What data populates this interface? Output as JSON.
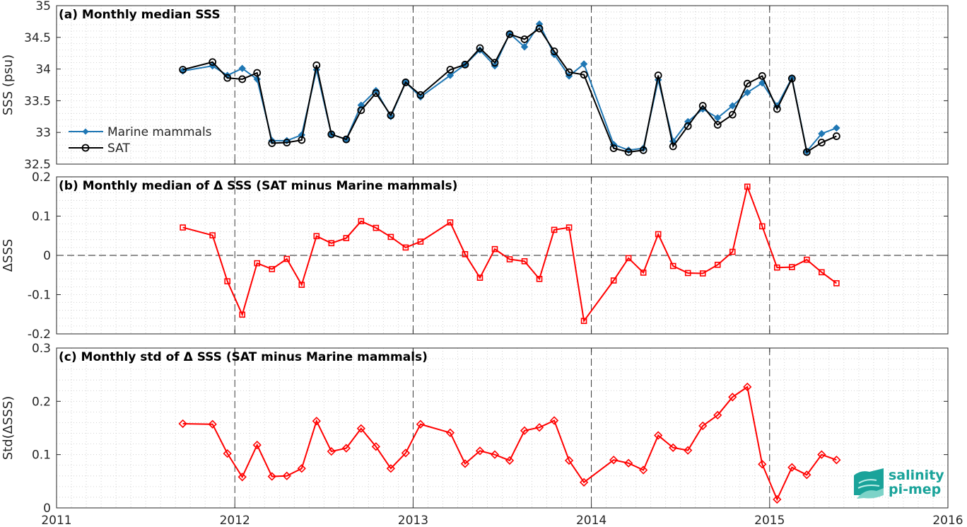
{
  "chart_data": [
    {
      "type": "line",
      "title": "(a) Monthly median SSS",
      "ylabel": "SSS (psu)",
      "xlim": [
        2011,
        2016
      ],
      "ylim": [
        32.5,
        35
      ],
      "yticks": [
        "32.5",
        "33",
        "33.5",
        "34",
        "34.5",
        "35"
      ],
      "xticks": [
        "2011",
        "2012",
        "2013",
        "2014",
        "2015",
        "2016"
      ],
      "grid": true,
      "legend_position": "bottom-left",
      "series": [
        {
          "name": "Marine mammals",
          "color": "#1f77b4",
          "marker": "diamond-filled",
          "points": [
            [
              "2011-09",
              33.97
            ],
            [
              "2011-11",
              34.05
            ],
            [
              "2011-12",
              33.9
            ],
            [
              "2012-01",
              34.01
            ],
            [
              "2012-02",
              33.84
            ],
            [
              "2012-03",
              32.87
            ],
            [
              "2012-04",
              32.87
            ],
            [
              "2012-05",
              32.96
            ],
            [
              "2012-06",
              33.99
            ],
            [
              "2012-07",
              32.97
            ],
            [
              "2012-08",
              32.89
            ],
            [
              "2012-09",
              33.43
            ],
            [
              "2012-10",
              33.66
            ],
            [
              "2012-11",
              33.25
            ],
            [
              "2012-12",
              33.79
            ],
            [
              "2013-01",
              33.56
            ],
            [
              "2013-03",
              33.9
            ],
            [
              "2013-04",
              34.07
            ],
            [
              "2013-05",
              34.3
            ],
            [
              "2013-06",
              34.05
            ],
            [
              "2013-07",
              34.56
            ],
            [
              "2013-08",
              34.35
            ],
            [
              "2013-09",
              34.71
            ],
            [
              "2013-10",
              34.23
            ],
            [
              "2013-11",
              33.89
            ],
            [
              "2013-12",
              34.08
            ],
            [
              "2014-02",
              32.81
            ],
            [
              "2014-03",
              32.72
            ],
            [
              "2014-04",
              32.75
            ],
            [
              "2014-05",
              33.83
            ],
            [
              "2014-06",
              32.86
            ],
            [
              "2014-07",
              33.17
            ],
            [
              "2014-08",
              33.37
            ],
            [
              "2014-09",
              33.23
            ],
            [
              "2014-10",
              33.42
            ],
            [
              "2014-11",
              33.63
            ],
            [
              "2014-12",
              33.78
            ],
            [
              "2015-01",
              33.42
            ],
            [
              "2015-02",
              33.86
            ],
            [
              "2015-03",
              32.7
            ],
            [
              "2015-04",
              32.98
            ],
            [
              "2015-05",
              33.07
            ]
          ]
        },
        {
          "name": "SAT",
          "color": "#000000",
          "marker": "circle-open",
          "points": [
            [
              "2011-09",
              33.99
            ],
            [
              "2011-11",
              34.11
            ],
            [
              "2011-12",
              33.86
            ],
            [
              "2012-01",
              33.84
            ],
            [
              "2012-02",
              33.94
            ],
            [
              "2012-03",
              32.83
            ],
            [
              "2012-04",
              32.84
            ],
            [
              "2012-05",
              32.88
            ],
            [
              "2012-06",
              34.06
            ],
            [
              "2012-07",
              32.97
            ],
            [
              "2012-08",
              32.89
            ],
            [
              "2012-09",
              33.35
            ],
            [
              "2012-10",
              33.62
            ],
            [
              "2012-11",
              33.27
            ],
            [
              "2012-12",
              33.79
            ],
            [
              "2013-01",
              33.59
            ],
            [
              "2013-03",
              33.99
            ],
            [
              "2013-04",
              34.07
            ],
            [
              "2013-05",
              34.33
            ],
            [
              "2013-06",
              34.1
            ],
            [
              "2013-07",
              34.55
            ],
            [
              "2013-08",
              34.47
            ],
            [
              "2013-09",
              34.64
            ],
            [
              "2013-10",
              34.28
            ],
            [
              "2013-11",
              33.95
            ],
            [
              "2013-12",
              33.91
            ],
            [
              "2014-02",
              32.75
            ],
            [
              "2014-03",
              32.69
            ],
            [
              "2014-04",
              32.72
            ],
            [
              "2014-05",
              33.9
            ],
            [
              "2014-06",
              32.78
            ],
            [
              "2014-07",
              33.1
            ],
            [
              "2014-08",
              33.42
            ],
            [
              "2014-09",
              33.12
            ],
            [
              "2014-10",
              33.28
            ],
            [
              "2014-11",
              33.77
            ],
            [
              "2014-12",
              33.89
            ],
            [
              "2015-01",
              33.37
            ],
            [
              "2015-02",
              33.85
            ],
            [
              "2015-03",
              32.69
            ],
            [
              "2015-04",
              32.84
            ],
            [
              "2015-05",
              32.94
            ]
          ]
        }
      ]
    },
    {
      "type": "line",
      "title": "(b) Monthly median of Δ SSS (SAT minus Marine mammals)",
      "ylabel": "ΔSSS",
      "xlim": [
        2011,
        2016
      ],
      "ylim": [
        -0.2,
        0.2
      ],
      "yticks": [
        "-0.2",
        "-0.1",
        "0",
        "0.1",
        "0.2"
      ],
      "xticks": [
        "2011",
        "2012",
        "2013",
        "2014",
        "2015",
        "2016"
      ],
      "grid": true,
      "zero_line": true,
      "series": [
        {
          "color": "#ff0000",
          "marker": "square-open",
          "points": [
            [
              "2011-09",
              0.071
            ],
            [
              "2011-11",
              0.051
            ],
            [
              "2011-12",
              -0.066
            ],
            [
              "2012-01",
              -0.151
            ],
            [
              "2012-02",
              -0.02
            ],
            [
              "2012-03",
              -0.035
            ],
            [
              "2012-04",
              -0.009
            ],
            [
              "2012-05",
              -0.075
            ],
            [
              "2012-06",
              0.049
            ],
            [
              "2012-07",
              0.031
            ],
            [
              "2012-08",
              0.044
            ],
            [
              "2012-09",
              0.087
            ],
            [
              "2012-10",
              0.07
            ],
            [
              "2012-11",
              0.047
            ],
            [
              "2012-12",
              0.02
            ],
            [
              "2013-01",
              0.035
            ],
            [
              "2013-03",
              0.084
            ],
            [
              "2013-04",
              0.003
            ],
            [
              "2013-05",
              -0.057
            ],
            [
              "2013-06",
              0.016
            ],
            [
              "2013-07",
              -0.01
            ],
            [
              "2013-08",
              -0.015
            ],
            [
              "2013-09",
              -0.06
            ],
            [
              "2013-10",
              0.065
            ],
            [
              "2013-11",
              0.071
            ],
            [
              "2013-12",
              -0.167
            ],
            [
              "2014-02",
              -0.064
            ],
            [
              "2014-03",
              -0.007
            ],
            [
              "2014-04",
              -0.044
            ],
            [
              "2014-05",
              0.054
            ],
            [
              "2014-06",
              -0.027
            ],
            [
              "2014-07",
              -0.045
            ],
            [
              "2014-08",
              -0.046
            ],
            [
              "2014-09",
              -0.024
            ],
            [
              "2014-10",
              0.009
            ],
            [
              "2014-11",
              0.175
            ],
            [
              "2014-12",
              0.074
            ],
            [
              "2015-01",
              -0.031
            ],
            [
              "2015-02",
              -0.03
            ],
            [
              "2015-03",
              -0.011
            ],
            [
              "2015-04",
              -0.043
            ],
            [
              "2015-05",
              -0.071
            ]
          ]
        }
      ]
    },
    {
      "type": "line",
      "title": "(c) Monthly std of Δ SSS (SAT minus Marine mammals)",
      "ylabel": "Std(ΔSSS)",
      "xlim": [
        2011,
        2016
      ],
      "ylim": [
        0,
        0.3
      ],
      "yticks": [
        "0",
        "0.1",
        "0.2",
        "0.3"
      ],
      "xticks": [
        "2011",
        "2012",
        "2013",
        "2014",
        "2015",
        "2016"
      ],
      "grid": true,
      "series": [
        {
          "color": "#ff0000",
          "marker": "diamond-open",
          "points": [
            [
              "2011-09",
              0.158
            ],
            [
              "2011-11",
              0.157
            ],
            [
              "2011-12",
              0.102
            ],
            [
              "2012-01",
              0.058
            ],
            [
              "2012-02",
              0.118
            ],
            [
              "2012-03",
              0.059
            ],
            [
              "2012-04",
              0.06
            ],
            [
              "2012-05",
              0.074
            ],
            [
              "2012-06",
              0.163
            ],
            [
              "2012-07",
              0.106
            ],
            [
              "2012-08",
              0.112
            ],
            [
              "2012-09",
              0.149
            ],
            [
              "2012-10",
              0.115
            ],
            [
              "2012-11",
              0.074
            ],
            [
              "2012-12",
              0.103
            ],
            [
              "2013-01",
              0.157
            ],
            [
              "2013-03",
              0.141
            ],
            [
              "2013-04",
              0.083
            ],
            [
              "2013-05",
              0.107
            ],
            [
              "2013-06",
              0.1
            ],
            [
              "2013-07",
              0.089
            ],
            [
              "2013-08",
              0.145
            ],
            [
              "2013-09",
              0.151
            ],
            [
              "2013-10",
              0.164
            ],
            [
              "2013-11",
              0.089
            ],
            [
              "2013-12",
              0.048
            ],
            [
              "2014-02",
              0.09
            ],
            [
              "2014-03",
              0.084
            ],
            [
              "2014-04",
              0.071
            ],
            [
              "2014-05",
              0.136
            ],
            [
              "2014-06",
              0.113
            ],
            [
              "2014-07",
              0.108
            ],
            [
              "2014-08",
              0.154
            ],
            [
              "2014-09",
              0.174
            ],
            [
              "2014-10",
              0.208
            ],
            [
              "2014-11",
              0.227
            ],
            [
              "2014-12",
              0.082
            ],
            [
              "2015-01",
              0.016
            ],
            [
              "2015-02",
              0.076
            ],
            [
              "2015-03",
              0.062
            ],
            [
              "2015-04",
              0.1
            ],
            [
              "2015-05",
              0.09
            ]
          ]
        }
      ]
    }
  ],
  "logo": {
    "line1": "salinity",
    "line2": "pi-mep"
  }
}
